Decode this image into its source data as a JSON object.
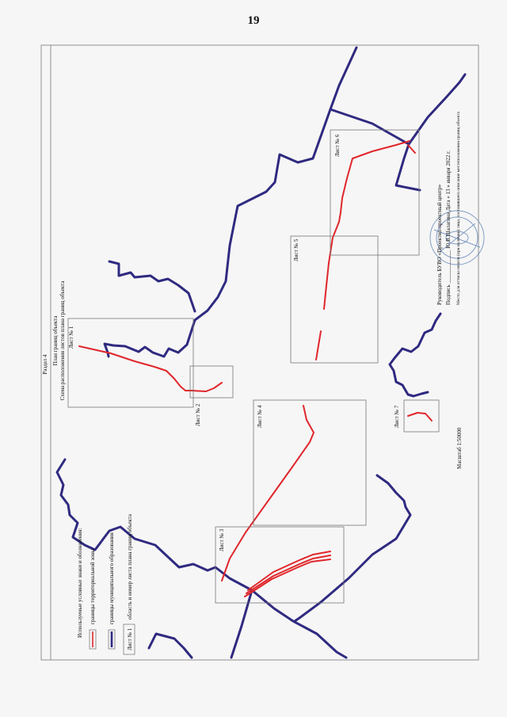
{
  "page": {
    "number": "19"
  },
  "colors": {
    "municipal_boundary": "#2f2a80",
    "territorial_zone": "#e0262b",
    "frame": "#777777",
    "stamp": "#5a7fb5"
  },
  "header": {
    "section": "Раздел 4",
    "plan_title": "План границ объекта",
    "scheme_title": "Схема расположения листов плана границ объекта"
  },
  "sheets": [
    "Лист № 1",
    "Лист № 2",
    "Лист № 3",
    "Лист № 4",
    "Лист № 5",
    "Лист № 6",
    "Лист № 7"
  ],
  "legend": {
    "title": "Используемые условные знаки и обозначения:",
    "items": [
      {
        "icon": "territorial-zone-line",
        "label": "границы территориальной зоны"
      },
      {
        "icon": "municipal-boundary-line",
        "label": "границы муниципального образования"
      },
      {
        "icon": "sheet-frame-box",
        "box_text": "Лист № 1",
        "label": "область и номер листа плана границ объекта"
      }
    ]
  },
  "scale": "Масштаб 1:50000",
  "signature": {
    "line1": "Руководитель БУВО «Проектно-проектный центр»",
    "line2": "Подпись ____________ Ю.В.Шалагина   Дата «   13   »   января   2022 г.",
    "line3": "Место для оттиска печати (при наличии) лица, составившего описание местоположения границ объекта"
  }
}
